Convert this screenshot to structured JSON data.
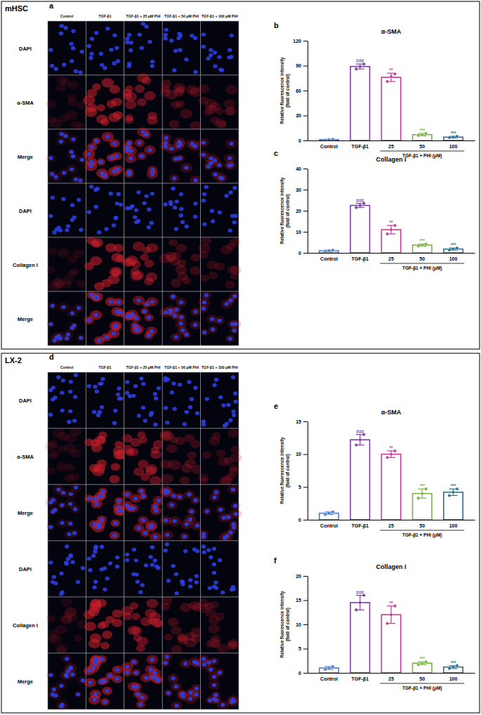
{
  "micrographs": [
    {
      "cell": "mHSC",
      "letter": "a",
      "columns": [
        "Control",
        "TGF-β1",
        "TGF-β1 + 25 μM PHI",
        "TGF-β1 + 50 μM PHI",
        "TGF-β1 + 100 μM PHI"
      ],
      "rows": [
        "DAPI",
        "α-SMA",
        "Merge",
        "DAPI",
        "Collagen I",
        "Merge"
      ]
    },
    {
      "cell": "LX-2",
      "letter": "d",
      "columns": [
        "Control",
        "TGF-β1",
        "TGF-β1 + 25 μM PHI",
        "TGF-β1 + 50 μM PHI",
        "TGF-β1 + 100 μM PHI"
      ],
      "rows": [
        "DAPI",
        "α-SMA",
        "Merge",
        "DAPI",
        "Collagen I",
        "Merge"
      ]
    }
  ],
  "chart_data": [
    {
      "type": "bar",
      "panel": "b",
      "title": "α-SMA",
      "ylabel": [
        "Relative fluorescence intensity",
        "(fold of control)"
      ],
      "categories": [
        "Control",
        "TGF-β1",
        "25",
        "50",
        "100"
      ],
      "group_label": "TGF-β1 + PHI (μM)",
      "values": [
        1,
        89,
        76,
        7,
        4
      ],
      "errors": [
        0.5,
        3,
        5,
        1.5,
        1
      ],
      "points": [
        [
          0.5,
          1,
          1.5
        ],
        [
          86,
          89,
          92
        ],
        [
          71,
          77,
          80
        ],
        [
          6,
          7,
          8.5
        ],
        [
          3.5,
          4,
          5
        ]
      ],
      "significance": [
        null,
        "###",
        "**",
        "***",
        "***"
      ],
      "colors": [
        "#4f7fc4",
        "#7b3fa0",
        "#c23a9b",
        "#79b340",
        "#2e6e8e"
      ],
      "ylim": [
        0,
        120
      ],
      "yticks": [
        0,
        30,
        60,
        90,
        120
      ],
      "grid": false
    },
    {
      "type": "bar",
      "panel": "c",
      "title": "Collagen I",
      "ylabel": [
        "Relative fluorescence intensity",
        "(fold of control)"
      ],
      "categories": [
        "Control",
        "TGF-β1",
        "25",
        "50",
        "100"
      ],
      "group_label": "TGF-β1 + PHI (μM)",
      "values": [
        1,
        22.5,
        11,
        3.7,
        1.8
      ],
      "errors": [
        0.3,
        1,
        2,
        0.5,
        0.5
      ],
      "points": [
        [
          0.7,
          1,
          1.3
        ],
        [
          21.5,
          22.5,
          23.5
        ],
        [
          9,
          11,
          13
        ],
        [
          3.2,
          3.7,
          4.2
        ],
        [
          1.3,
          1.8,
          2.3
        ]
      ],
      "significance": [
        null,
        "###",
        "**",
        "***",
        "***"
      ],
      "colors": [
        "#4f7fc4",
        "#7b3fa0",
        "#c23a9b",
        "#79b340",
        "#2e6e8e"
      ],
      "ylim": [
        0,
        40
      ],
      "yticks": [
        0,
        10,
        20,
        30,
        40
      ],
      "grid": false
    },
    {
      "type": "bar",
      "panel": "e",
      "title": "α-SMA",
      "ylabel": [
        "Relative fluorescence intensity",
        "(fold of control)"
      ],
      "categories": [
        "Control",
        "TGF-β1",
        "25",
        "50",
        "100"
      ],
      "group_label": "TGF-β1 + PHI (μM)",
      "values": [
        1,
        12.2,
        10,
        4,
        4.2
      ],
      "errors": [
        0.2,
        0.8,
        0.5,
        0.7,
        0.5
      ],
      "points": [
        [
          0.8,
          1,
          1.2
        ],
        [
          11.4,
          12.2,
          13
        ],
        [
          9.5,
          10,
          10.5
        ],
        [
          3.3,
          4,
          4.7
        ],
        [
          3.7,
          4.2,
          4.7
        ]
      ],
      "significance": [
        null,
        "###",
        "**",
        "***",
        "***"
      ],
      "colors": [
        "#4f7fc4",
        "#7b3fa0",
        "#c23a9b",
        "#79b340",
        "#2e6e8e"
      ],
      "ylim": [
        0,
        15
      ],
      "yticks": [
        0,
        5,
        10,
        15
      ],
      "grid": false
    },
    {
      "type": "bar",
      "panel": "f",
      "title": "Collagen I",
      "ylabel": [
        "Relative fluorescence intensity",
        "(fold of control)"
      ],
      "categories": [
        "Control",
        "TGF-β1",
        "25",
        "50",
        "100"
      ],
      "group_label": "TGF-β1 + PHI (μM)",
      "values": [
        1,
        14.5,
        12,
        2,
        1.2
      ],
      "errors": [
        0.3,
        1.5,
        1.8,
        0.3,
        0.3
      ],
      "points": [
        [
          0.7,
          1,
          1.3
        ],
        [
          13,
          14.5,
          16
        ],
        [
          10.2,
          12,
          13.8
        ],
        [
          1.7,
          2,
          2.3
        ],
        [
          0.9,
          1.2,
          1.5
        ]
      ],
      "significance": [
        null,
        "###",
        "**",
        "***",
        "***"
      ],
      "colors": [
        "#4f7fc4",
        "#7b3fa0",
        "#c23a9b",
        "#79b340",
        "#2e6e8e"
      ],
      "ylim": [
        0,
        20
      ],
      "yticks": [
        0,
        5,
        10,
        15,
        20
      ],
      "grid": false
    }
  ]
}
